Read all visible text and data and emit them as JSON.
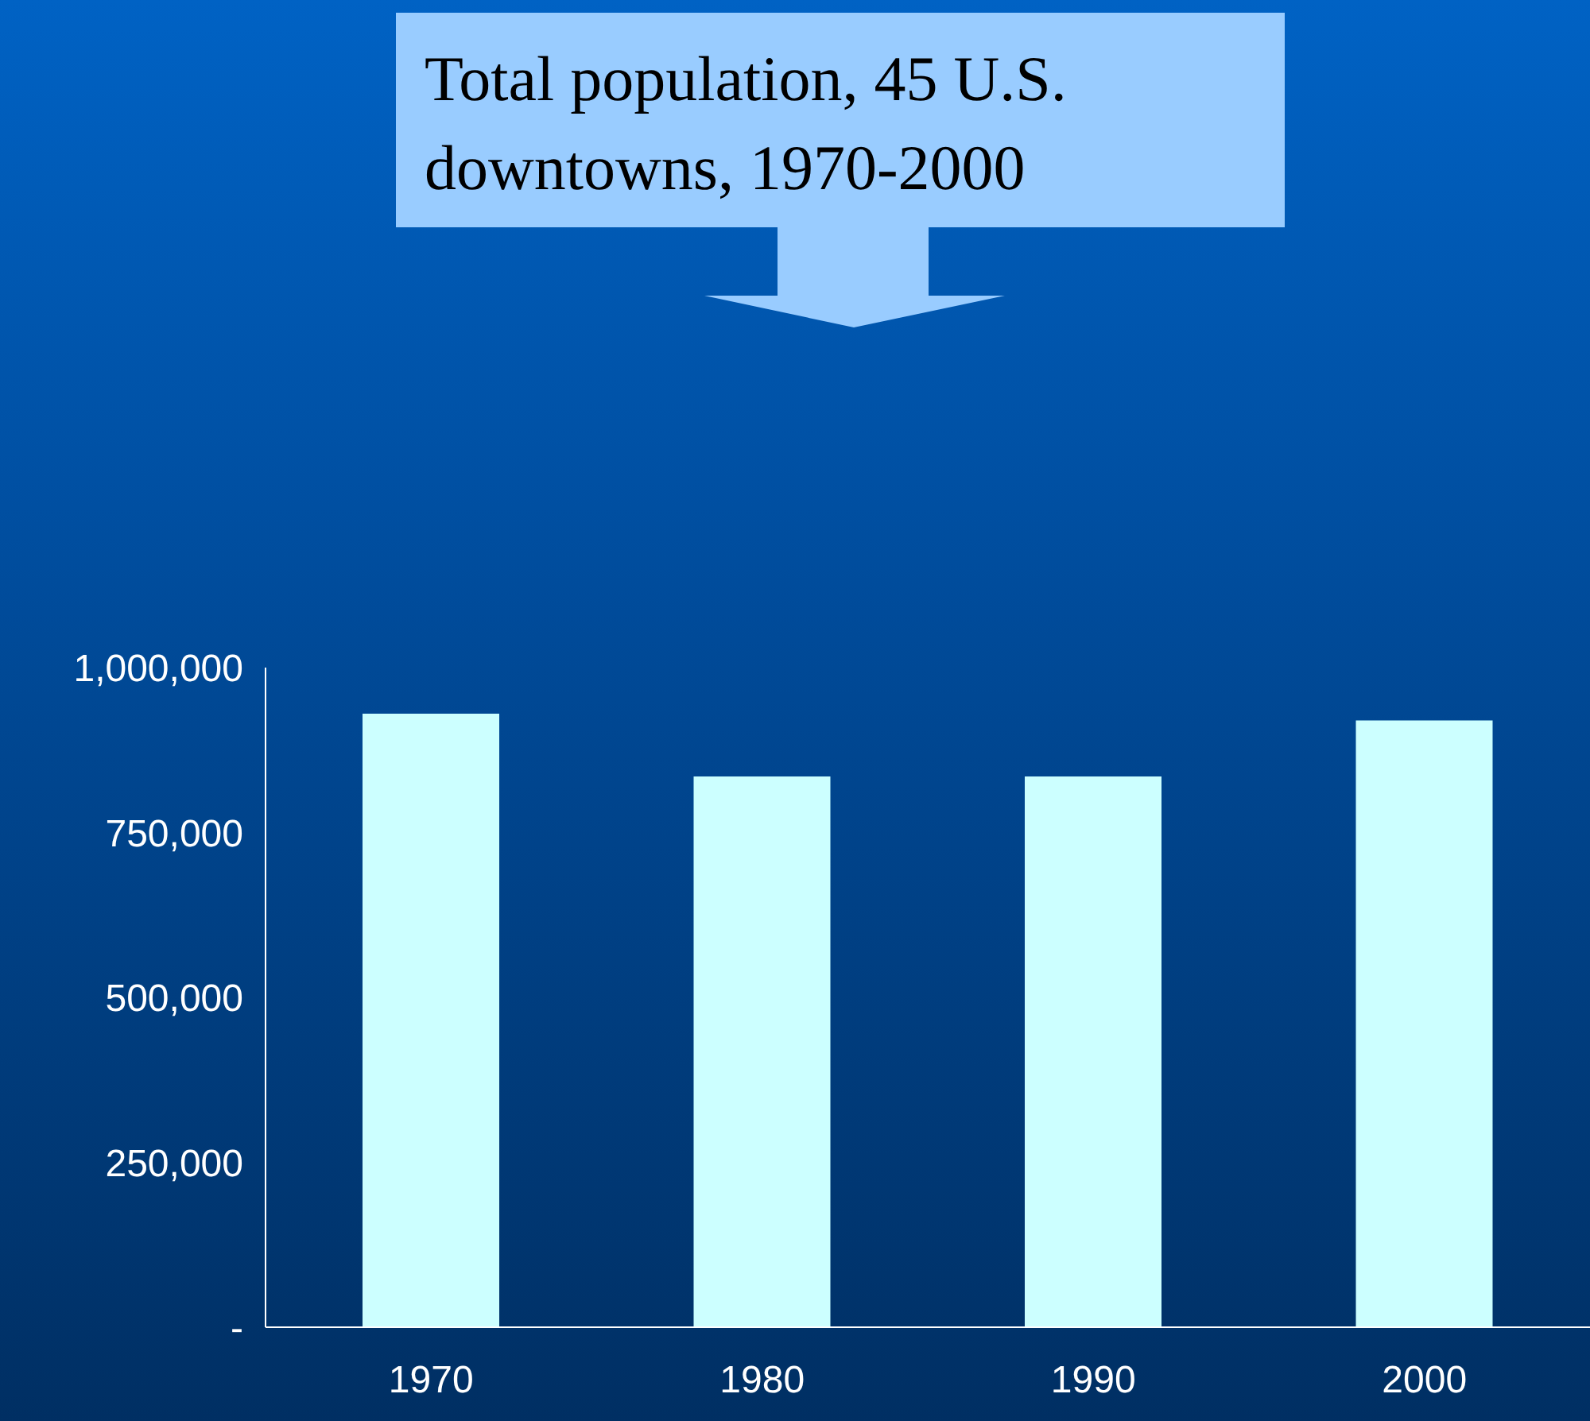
{
  "chart_data": {
    "type": "bar",
    "title": "Total population, 45 U.S. downtowns, 1970-2000",
    "categories": [
      "1970",
      "1980",
      "1990",
      "2000"
    ],
    "values": [
      930000,
      835000,
      835000,
      920000
    ],
    "color": "#ccffff",
    "ylim": [
      0,
      1000000
    ],
    "yticks": [
      {
        "value": 0,
        "label": "-"
      },
      {
        "value": 250000,
        "label": "250,000"
      },
      {
        "value": 500000,
        "label": "500,000"
      },
      {
        "value": 750000,
        "label": "750,000"
      },
      {
        "value": 1000000,
        "label": "1,000,000"
      }
    ]
  }
}
